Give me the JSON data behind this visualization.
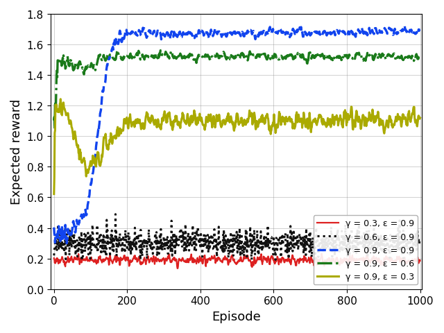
{
  "title": "",
  "xlabel": "Episode",
  "ylabel": "Expected reward",
  "xlim": [
    -10,
    1005
  ],
  "ylim": [
    0.0,
    1.8
  ],
  "yticks": [
    0.0,
    0.2,
    0.4,
    0.6,
    0.8,
    1.0,
    1.2,
    1.4,
    1.6,
    1.8
  ],
  "xticks": [
    0,
    200,
    400,
    600,
    800,
    1000
  ],
  "n_episodes": 1001,
  "series": [
    {
      "label": "γ = 0.3, ε = 0.9",
      "color": "#dd2020",
      "linestyle": "-",
      "linewidth": 1.6,
      "type": "red"
    },
    {
      "label": "γ = 0.6, ε = 0.9",
      "color": "#111111",
      "linestyle": ":",
      "linewidth": 2.2,
      "type": "black"
    },
    {
      "label": "γ = 0.9, ε = 0.9",
      "color": "#1144ee",
      "linestyle": "--",
      "linewidth": 2.4,
      "type": "blue"
    },
    {
      "label": "γ = 0.9, ε = 0.6",
      "color": "#1a7a1a",
      "linestyle": "-.",
      "linewidth": 2.4,
      "type": "green"
    },
    {
      "label": "γ = 0.9, ε = 0.3",
      "color": "#aaaa00",
      "linestyle": "-",
      "linewidth": 2.2,
      "type": "yellow"
    }
  ]
}
